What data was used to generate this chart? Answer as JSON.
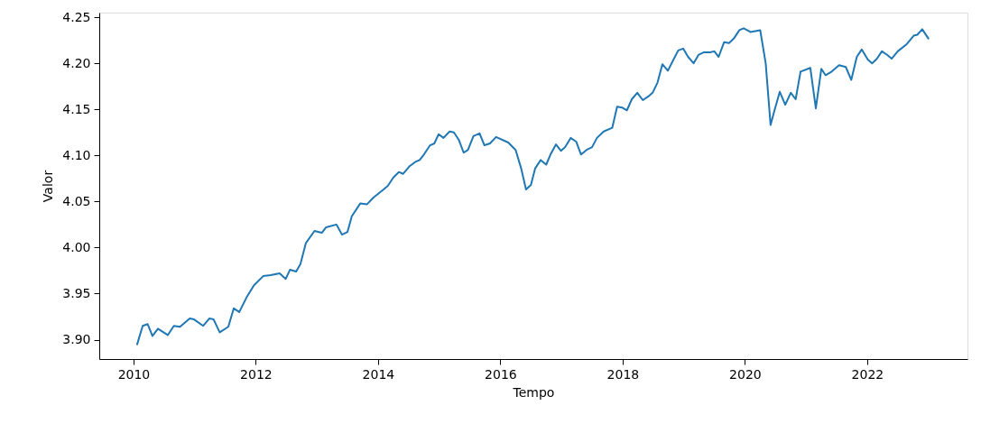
{
  "chart_data": {
    "type": "line",
    "xlabel": "Tempo",
    "ylabel": "Valor",
    "xlim": [
      2009.44,
      2023.64
    ],
    "ylim": [
      3.879,
      4.255
    ],
    "xticks": [
      2010,
      2012,
      2014,
      2016,
      2018,
      2020,
      2022
    ],
    "yticks": [
      {
        "value": 3.9,
        "label": "3.90"
      },
      3.95,
      {
        "value": 4.0,
        "label": "4.00"
      },
      4.05,
      {
        "value": 4.1,
        "label": "4.10"
      },
      4.15,
      {
        "value": 4.2,
        "label": "4.20"
      },
      4.25
    ],
    "grid": false,
    "marker": "none",
    "line_style": "solid",
    "series": [
      {
        "color": "#1f77b4",
        "x": [
          2010.06,
          2010.15,
          2010.23,
          2010.31,
          2010.4,
          2010.56,
          2010.66,
          2010.76,
          2010.92,
          2010.99,
          2011.14,
          2011.24,
          2011.31,
          2011.41,
          2011.55,
          2011.64,
          2011.73,
          2011.85,
          2011.97,
          2012.12,
          2012.24,
          2012.39,
          2012.49,
          2012.56,
          2012.66,
          2012.73,
          2012.82,
          2012.96,
          2013.08,
          2013.15,
          2013.32,
          2013.41,
          2013.5,
          2013.57,
          2013.71,
          2013.82,
          2013.92,
          2014.09,
          2014.16,
          2014.25,
          2014.34,
          2014.41,
          2014.51,
          2014.61,
          2014.68,
          2014.75,
          2014.85,
          2014.92,
          2014.99,
          2015.07,
          2015.17,
          2015.24,
          2015.32,
          2015.4,
          2015.47,
          2015.56,
          2015.66,
          2015.74,
          2015.83,
          2015.93,
          2016.13,
          2016.25,
          2016.34,
          2016.42,
          2016.5,
          2016.57,
          2016.66,
          2016.75,
          2016.82,
          2016.91,
          2016.99,
          2017.06,
          2017.15,
          2017.24,
          2017.32,
          2017.41,
          2017.5,
          2017.58,
          2017.69,
          2017.83,
          2017.91,
          2017.99,
          2018.07,
          2018.15,
          2018.24,
          2018.33,
          2018.42,
          2018.49,
          2018.57,
          2018.65,
          2018.74,
          2018.84,
          2018.91,
          2018.99,
          2019.07,
          2019.16,
          2019.24,
          2019.33,
          2019.43,
          2019.5,
          2019.57,
          2019.66,
          2019.74,
          2019.82,
          2019.91,
          2019.98,
          2020.09,
          2020.17,
          2020.25,
          2020.34,
          2020.42,
          2020.48,
          2020.57,
          2020.66,
          2020.75,
          2020.83,
          2020.91,
          2021.07,
          2021.16,
          2021.25,
          2021.32,
          2021.42,
          2021.54,
          2021.65,
          2021.74,
          2021.83,
          2021.91,
          2022.01,
          2022.08,
          2022.16,
          2022.24,
          2022.33,
          2022.4,
          2022.5,
          2022.65,
          2022.76,
          2022.82,
          2022.9,
          2023.0
        ],
        "values": [
          3.895,
          3.915,
          3.917,
          3.904,
          3.912,
          3.905,
          3.915,
          3.914,
          3.923,
          3.922,
          3.915,
          3.923,
          3.922,
          3.908,
          3.914,
          3.934,
          3.93,
          3.946,
          3.959,
          3.969,
          3.97,
          3.972,
          3.966,
          3.976,
          3.974,
          3.982,
          4.005,
          4.018,
          4.016,
          4.022,
          4.025,
          4.014,
          4.017,
          4.034,
          4.048,
          4.047,
          4.054,
          4.063,
          4.067,
          4.076,
          4.082,
          4.08,
          4.088,
          4.093,
          4.095,
          4.101,
          4.111,
          4.113,
          4.123,
          4.119,
          4.126,
          4.125,
          4.117,
          4.103,
          4.106,
          4.121,
          4.124,
          4.111,
          4.113,
          4.12,
          4.114,
          4.106,
          4.086,
          4.063,
          4.068,
          4.086,
          4.095,
          4.09,
          4.101,
          4.112,
          4.105,
          4.109,
          4.119,
          4.115,
          4.101,
          4.106,
          4.109,
          4.119,
          4.126,
          4.13,
          4.153,
          4.152,
          4.149,
          4.161,
          4.168,
          4.16,
          4.164,
          4.168,
          4.179,
          4.199,
          4.192,
          4.205,
          4.214,
          4.216,
          4.207,
          4.2,
          4.209,
          4.212,
          4.212,
          4.213,
          4.207,
          4.223,
          4.222,
          4.227,
          4.236,
          4.238,
          4.234,
          4.235,
          4.236,
          4.2,
          4.133,
          4.148,
          4.169,
          4.155,
          4.168,
          4.161,
          4.191,
          4.195,
          4.151,
          4.194,
          4.187,
          4.191,
          4.198,
          4.196,
          4.182,
          4.207,
          4.215,
          4.204,
          4.2,
          4.205,
          4.213,
          4.209,
          4.205,
          4.213,
          4.221,
          4.23,
          4.231,
          4.237,
          4.227
        ]
      }
    ]
  }
}
